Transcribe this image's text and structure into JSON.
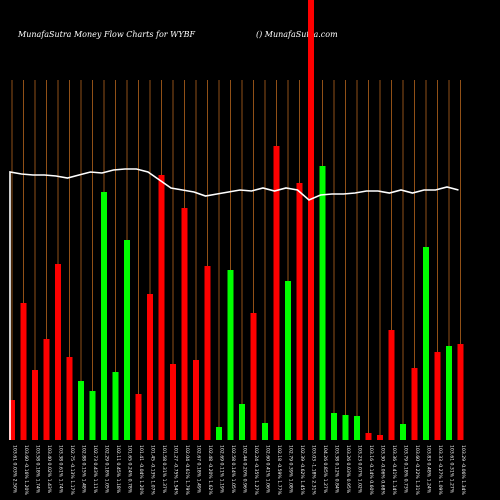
{
  "chart_data": {
    "type": "bar",
    "title": "MunafaSutra  Money Flow  Charts for WYBF",
    "subtitle": "() MunafaSutra.com",
    "categories": [
      "103.61 0.03% 2.50%",
      "103.60 -0.16% 1.20%",
      "103.58 0.18% 1.74%",
      "103.40 0.02% 1.43%",
      "103.38 0.61% 1.74%",
      "102.75 -0.13% 1.17%",
      "102.88 0.15% 1.48%",
      "102.73 0.43% 1.11%",
      "102.29 0.18% 1.05%",
      "102.11 0.45% 1.18%",
      "101.65 0.24% 0.78%",
      "101.41 -0.04% 1.20%",
      "101.45 -0.13% 1.07%",
      "101.58 0.31% 1.37%",
      "101.27 -0.75% 1.54%",
      "102.04 -0.61% 1.79%",
      "102.67 0.18% 1.49%",
      "102.48 -0.20% 1.62%",
      "102.69 0.11% 1.19%",
      "102.58 0.14% 1.05%",
      "102.44 0.20% 0.96%",
      "102.24 -0.35% 1.27%",
      "102.60 0.41% 1.06%",
      "102.18 -0.59% 1.77%",
      "102.79 0.39% 1.08%",
      "102.39 -0.62% 1.45%",
      "103.03 -1.18% 2.31%",
      "104.26 0.85% 1.27%",
      "103.38 0.12% 0.84%",
      "103.26 0.03% 0.95%",
      "103.23 0.07% 1.02%",
      "103.16 -0.14% 0.60%",
      "103.30 -0.06% 0.68%",
      "103.36 -0.41% 1.14%",
      "103.79 0.18% 0.73%",
      "103.60 -0.22% 1.31%",
      "103.83 0.48% 1.24%",
      "103.33 -0.27% 1.09%",
      "103.61 0.31% 1.27%",
      "103.29 -0.06% 1.34%"
    ],
    "values": [
      40,
      137,
      70,
      101,
      176,
      83,
      59,
      49,
      248,
      68,
      200,
      46,
      146,
      265,
      76,
      232,
      80,
      174,
      13,
      170,
      36,
      127,
      17,
      294,
      159,
      257,
      440,
      274,
      27,
      25,
      24,
      7,
      5,
      110,
      16,
      72,
      193,
      88,
      94,
      96
    ],
    "bar_colors": [
      "#ff0000",
      "#ff0000",
      "#ff0000",
      "#ff0000",
      "#ff0000",
      "#ff0000",
      "#00ff00",
      "#00ff00",
      "#00ff00",
      "#00ff00",
      "#00ff00",
      "#ff0000",
      "#ff0000",
      "#ff0000",
      "#ff0000",
      "#ff0000",
      "#ff0000",
      "#ff0000",
      "#00ff00",
      "#00ff00",
      "#00ff00",
      "#ff0000",
      "#00ff00",
      "#ff0000",
      "#00ff00",
      "#ff0000",
      "#ff0000",
      "#00ff00",
      "#00ff00",
      "#00ff00",
      "#00ff00",
      "#ff0000",
      "#ff0000",
      "#ff0000",
      "#00ff00",
      "#ff0000",
      "#00ff00",
      "#ff0000",
      "#00ff00",
      "#ff0000"
    ],
    "line": {
      "color": "#ffffff",
      "values": [
        268,
        266,
        265,
        265,
        264,
        262,
        265,
        268,
        267,
        270,
        271,
        271,
        268,
        260,
        252,
        250,
        248,
        244,
        246,
        248,
        250,
        249,
        252,
        249,
        252,
        250,
        240,
        245,
        246,
        246,
        247,
        249,
        249,
        247,
        250,
        247,
        250,
        250,
        253,
        250
      ]
    },
    "ylim": [
      0,
      440
    ],
    "grid_color": "#b5651d"
  }
}
